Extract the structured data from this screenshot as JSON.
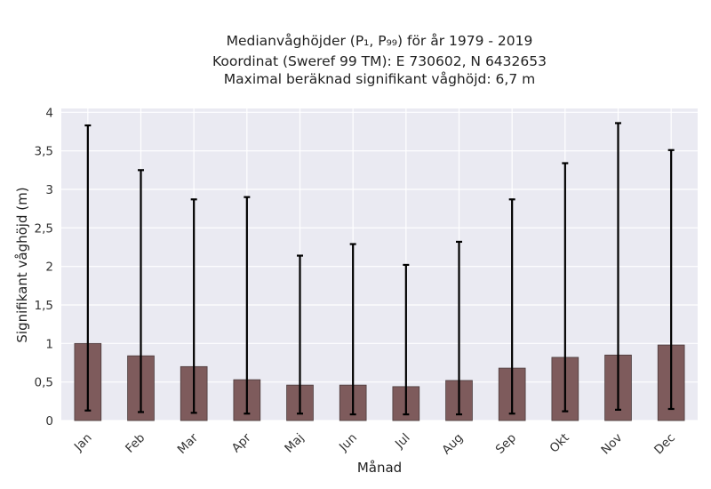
{
  "chart_data": {
    "type": "bar",
    "title_lines": [
      "Medianvåghöjder (P₁, P₉₉) för år 1979 - 2019",
      "Koordinat (Sweref 99 TM): E 730602, N 6432653",
      "Maximal beräknad signifikant våghöjd: 6,7 m"
    ],
    "xlabel": "Månad",
    "ylabel": "Signifikant våghöjd (m)",
    "categories": [
      "Jan",
      "Feb",
      "Mar",
      "Apr",
      "Maj",
      "Jun",
      "Jul",
      "Aug",
      "Sep",
      "Okt",
      "Nov",
      "Dec"
    ],
    "series": [
      {
        "values": [
          1.0,
          0.84,
          0.7,
          0.53,
          0.46,
          0.46,
          0.44,
          0.52,
          0.68,
          0.82,
          0.85,
          0.98
        ],
        "error_low": [
          0.13,
          0.11,
          0.1,
          0.09,
          0.09,
          0.08,
          0.08,
          0.08,
          0.09,
          0.12,
          0.14,
          0.15
        ],
        "error_high": [
          3.83,
          3.25,
          2.87,
          2.9,
          2.14,
          2.29,
          2.02,
          2.32,
          2.87,
          3.34,
          3.86,
          3.51
        ]
      }
    ],
    "ylim": [
      0,
      4.05
    ],
    "yticks": [
      0,
      0.5,
      1,
      1.5,
      2,
      2.5,
      3,
      3.5,
      4
    ],
    "ytick_labels": [
      "0",
      "0,5",
      "1",
      "1,5",
      "2",
      "2,5",
      "3",
      "3,5",
      "4"
    ],
    "grid": true,
    "bar_color": "#7e5b5c",
    "background_color": "#eaeaf2"
  }
}
